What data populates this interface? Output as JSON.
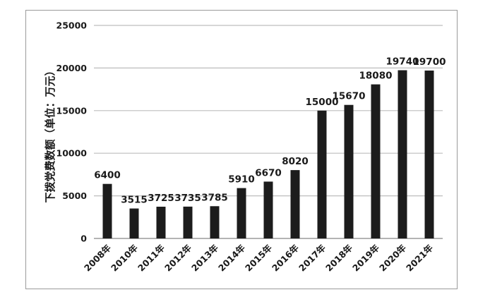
{
  "chart_data": {
    "type": "bar",
    "title": "",
    "xlabel": "",
    "ylabel": "下拨党费数额（单位：万元）",
    "categories": [
      "2008年",
      "2010年",
      "2011年",
      "2012年",
      "2013年",
      "2014年",
      "2015年",
      "2016年",
      "2017年",
      "2018年",
      "2019年",
      "2020年",
      "2021年"
    ],
    "values": [
      6400,
      3515,
      3725,
      3735,
      3785,
      5910,
      6670,
      8020,
      15000,
      15670,
      18080,
      19740,
      19700
    ],
    "ylim": [
      0,
      25000
    ],
    "yticks": [
      0,
      5000,
      10000,
      15000,
      20000,
      25000
    ],
    "grid": true,
    "legend": "none",
    "colors": {
      "bar": "#1c1c1c",
      "grid": "#bdbdbd",
      "frame": "#9a9a9a"
    }
  }
}
